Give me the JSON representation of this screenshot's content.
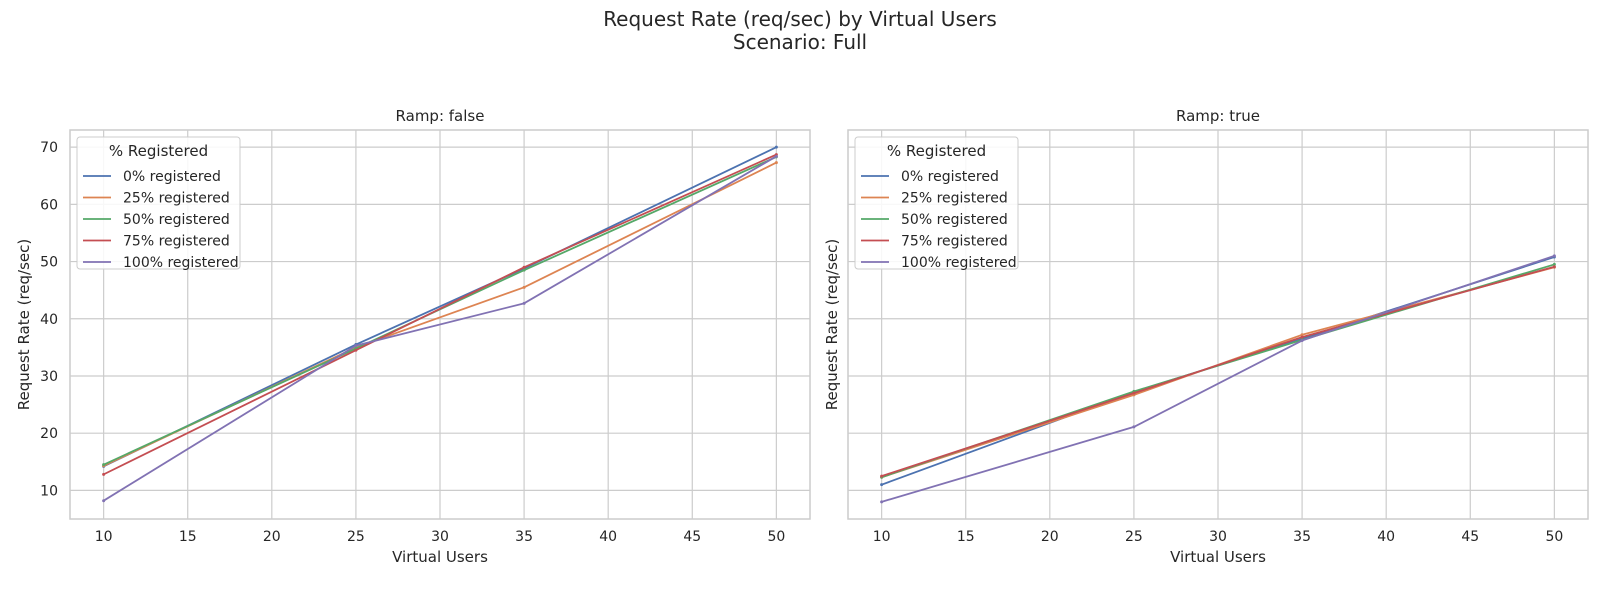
{
  "figure": {
    "title": "Request Rate (req/sec) by Virtual Users",
    "subtitle": "Scenario: Full"
  },
  "chart_data": [
    {
      "type": "line",
      "title": "Ramp: false",
      "xlabel": "Virtual Users",
      "ylabel": "Request Rate (req/sec)",
      "x": [
        10,
        25,
        35,
        50
      ],
      "xticks": [
        10,
        15,
        20,
        25,
        30,
        35,
        40,
        45,
        50
      ],
      "yticks": [
        10,
        20,
        30,
        40,
        50,
        60,
        70
      ],
      "xlim": [
        8,
        52
      ],
      "ylim": [
        5,
        73
      ],
      "grid": true,
      "legend": {
        "title": "% Registered",
        "position": "top-left"
      },
      "series": [
        {
          "name": "0% registered",
          "color": "#4c72b0",
          "values": [
            14.2,
            35.5,
            48.8,
            70.0
          ]
        },
        {
          "name": "25% registered",
          "color": "#dd8452",
          "values": [
            14.3,
            35.0,
            45.5,
            67.3
          ]
        },
        {
          "name": "50% registered",
          "color": "#55a868",
          "values": [
            14.5,
            34.8,
            48.5,
            68.3
          ]
        },
        {
          "name": "75% registered",
          "color": "#c44e52",
          "values": [
            12.8,
            34.5,
            49.0,
            68.7
          ]
        },
        {
          "name": "100% registered",
          "color": "#8172b3",
          "values": [
            8.2,
            35.3,
            42.7,
            68.4
          ]
        }
      ]
    },
    {
      "type": "line",
      "title": "Ramp: true",
      "xlabel": "Virtual Users",
      "ylabel": "Request Rate (req/sec)",
      "x": [
        10,
        25,
        35,
        50
      ],
      "xticks": [
        10,
        15,
        20,
        25,
        30,
        35,
        40,
        45,
        50
      ],
      "yticks": [
        10,
        20,
        30,
        40,
        50,
        60,
        70
      ],
      "xlim": [
        8,
        52
      ],
      "ylim": [
        5,
        73
      ],
      "grid": true,
      "legend": {
        "title": "% Registered",
        "position": "top-left"
      },
      "series": [
        {
          "name": "0% registered",
          "color": "#4c72b0",
          "values": [
            11.0,
            27.2,
            36.5,
            50.8
          ]
        },
        {
          "name": "25% registered",
          "color": "#dd8452",
          "values": [
            12.3,
            26.7,
            37.2,
            49.0
          ]
        },
        {
          "name": "50% registered",
          "color": "#55a868",
          "values": [
            12.3,
            27.3,
            36.3,
            49.5
          ]
        },
        {
          "name": "75% registered",
          "color": "#c44e52",
          "values": [
            12.5,
            27.0,
            36.8,
            49.1
          ]
        },
        {
          "name": "100% registered",
          "color": "#8172b3",
          "values": [
            8.0,
            21.1,
            36.2,
            51.0
          ]
        }
      ]
    }
  ]
}
